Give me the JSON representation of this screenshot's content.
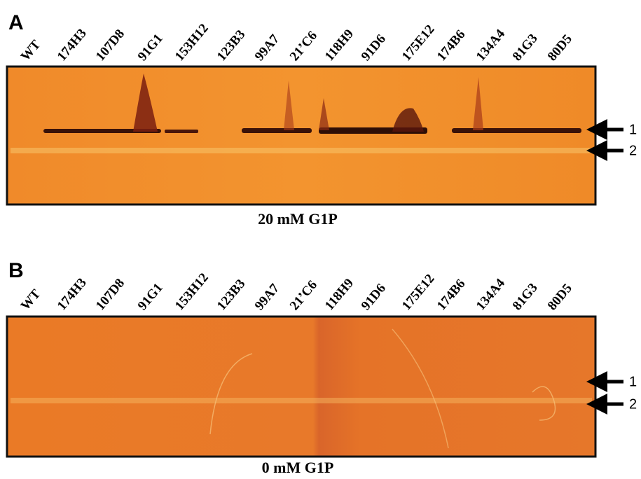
{
  "panels": [
    {
      "label": "A",
      "lanes": [
        "WT",
        "174H3",
        "107D8",
        "91G1",
        "153H12",
        "123B3",
        "99A7",
        "21’C6",
        "118H9",
        "91D6",
        "175E12",
        "174B6",
        "134A4",
        "81G3",
        "80D5"
      ],
      "caption": "20 mM G1P",
      "arrows": [
        "1",
        "2"
      ]
    },
    {
      "label": "B",
      "lanes": [
        "WT",
        "174H3",
        "107D8",
        "91G1",
        "153H12",
        "123B3",
        "99A7",
        "21’C6",
        "118H9",
        "91D6",
        "175E12",
        "174B6",
        "134A4",
        "81G3",
        "80D5"
      ],
      "caption": "0 mM G1P",
      "arrows": [
        "1",
        "2"
      ]
    }
  ]
}
